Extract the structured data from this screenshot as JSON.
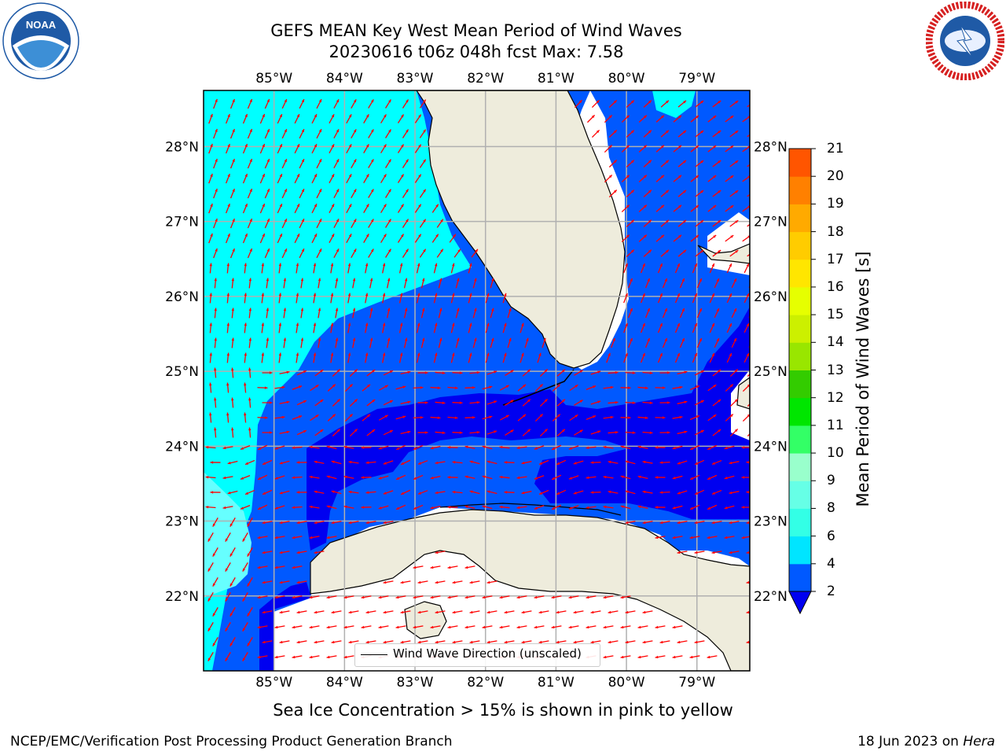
{
  "title": {
    "line1": "GEFS MEAN Key West Mean Period of Wind Waves",
    "line2": "20230616 t06z 048h fcst   Max: 7.58"
  },
  "logos": {
    "left": {
      "name": "noaa-logo",
      "text": "NOAA",
      "ring_text": "NATIONAL OCEANIC AND ATMOSPHERIC ADMINISTRATION • U.S. DEPARTMENT OF COMMERCE"
    },
    "right": {
      "name": "nws-logo",
      "ring_text": "NATIONAL WEATHER SERVICE"
    }
  },
  "map": {
    "extent": {
      "lon": [
        -86.0,
        -78.25
      ],
      "lat": [
        21.0,
        28.75
      ]
    },
    "lon_ticks": [
      "85°W",
      "84°W",
      "83°W",
      "82°W",
      "81°W",
      "80°W",
      "79°W"
    ],
    "lon_values": [
      -85,
      -84,
      -83,
      -82,
      -81,
      -80,
      -79
    ],
    "lat_ticks": [
      "22°N",
      "23°N",
      "24°N",
      "25°N",
      "26°N",
      "27°N",
      "28°N"
    ],
    "lat_values": [
      22,
      23,
      24,
      25,
      26,
      27,
      28
    ],
    "land_color": "#eeecdc",
    "grid_color": "#b0b0b0",
    "arrow_color": "#ff0000"
  },
  "legend": {
    "label": "Wind Wave Direction (unscaled)"
  },
  "colorbar": {
    "label": "Mean Period of Wind Waves [s]",
    "ticks": [
      "2",
      "4",
      "6",
      "8",
      "9",
      "10",
      "11",
      "12",
      "13",
      "14",
      "15",
      "16",
      "17",
      "18",
      "19",
      "20",
      "21"
    ],
    "levels": [
      2,
      4,
      6,
      8,
      9,
      10,
      11,
      12,
      13,
      14,
      15,
      16,
      17,
      18,
      19,
      20,
      21
    ],
    "colors": [
      "#0059ff",
      "#00e5ff",
      "#33ffe6",
      "#66ffe6",
      "#99ffcc",
      "#33ff66",
      "#00e600",
      "#33cc00",
      "#99e600",
      "#ccf000",
      "#e6ff00",
      "#ffe600",
      "#ffcc00",
      "#ffaa00",
      "#ff8000",
      "#ff5500",
      "#ff1a00",
      "#ff0000"
    ],
    "under_color": "#0000f0"
  },
  "subtitle": "Sea Ice Concentration > 15% is shown in pink to yellow",
  "footer": {
    "left": "NCEP/EMC/Verification Post Processing Product Generation Branch",
    "right_prefix": "18 Jun 2023 on ",
    "right_host": "Hera"
  }
}
